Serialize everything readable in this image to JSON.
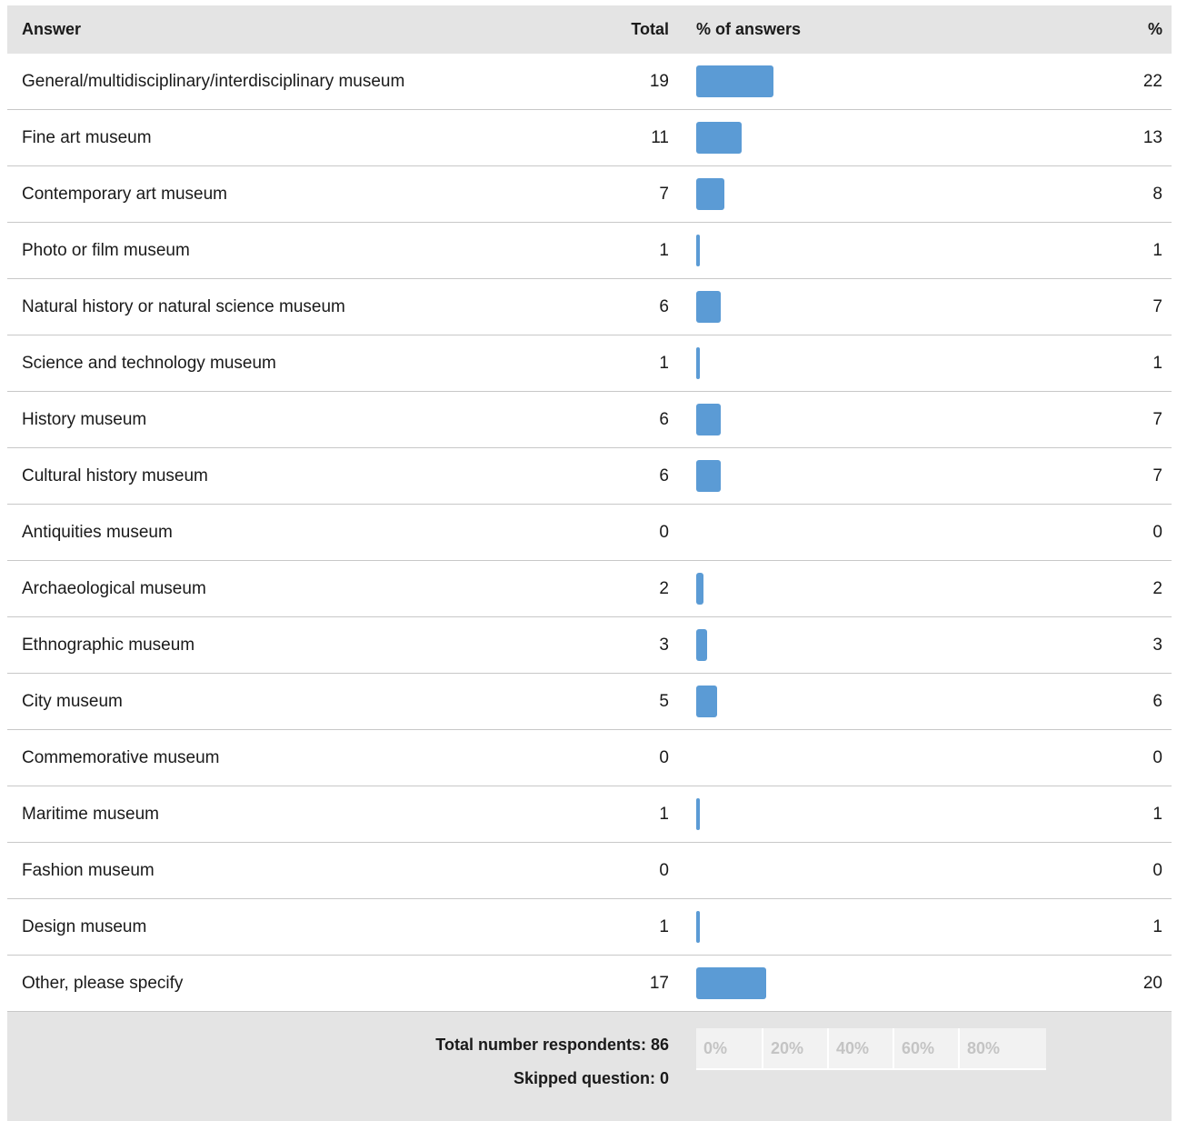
{
  "header": {
    "answer": "Answer",
    "total": "Total",
    "pct_answers": "% of answers",
    "pct": "%"
  },
  "chart_data": {
    "type": "bar",
    "categories": [
      "General/multidisciplinary/interdisciplinary museum",
      "Fine art museum",
      "Contemporary art museum",
      "Photo or film museum",
      "Natural history or natural science museum",
      "Science and technology museum",
      "History museum",
      "Cultural history museum",
      "Antiquities museum",
      "Archaeological museum",
      "Ethnographic museum",
      "City museum",
      "Commemorative museum",
      "Maritime museum",
      "Fashion museum",
      "Design museum",
      "Other, please specify"
    ],
    "totals": [
      19,
      11,
      7,
      1,
      6,
      1,
      6,
      6,
      0,
      2,
      3,
      5,
      0,
      1,
      0,
      1,
      17
    ],
    "values": [
      22,
      13,
      8,
      1,
      7,
      1,
      7,
      7,
      0,
      2,
      3,
      6,
      0,
      1,
      0,
      1,
      20
    ],
    "ylim": [
      0,
      100
    ],
    "scale_ticks": [
      "0%",
      "20%",
      "40%",
      "60%",
      "80%"
    ],
    "bar_color": "#5b9bd5"
  },
  "footer": {
    "respondents": "Total number respondents: 86",
    "skipped": "Skipped question: 0"
  }
}
